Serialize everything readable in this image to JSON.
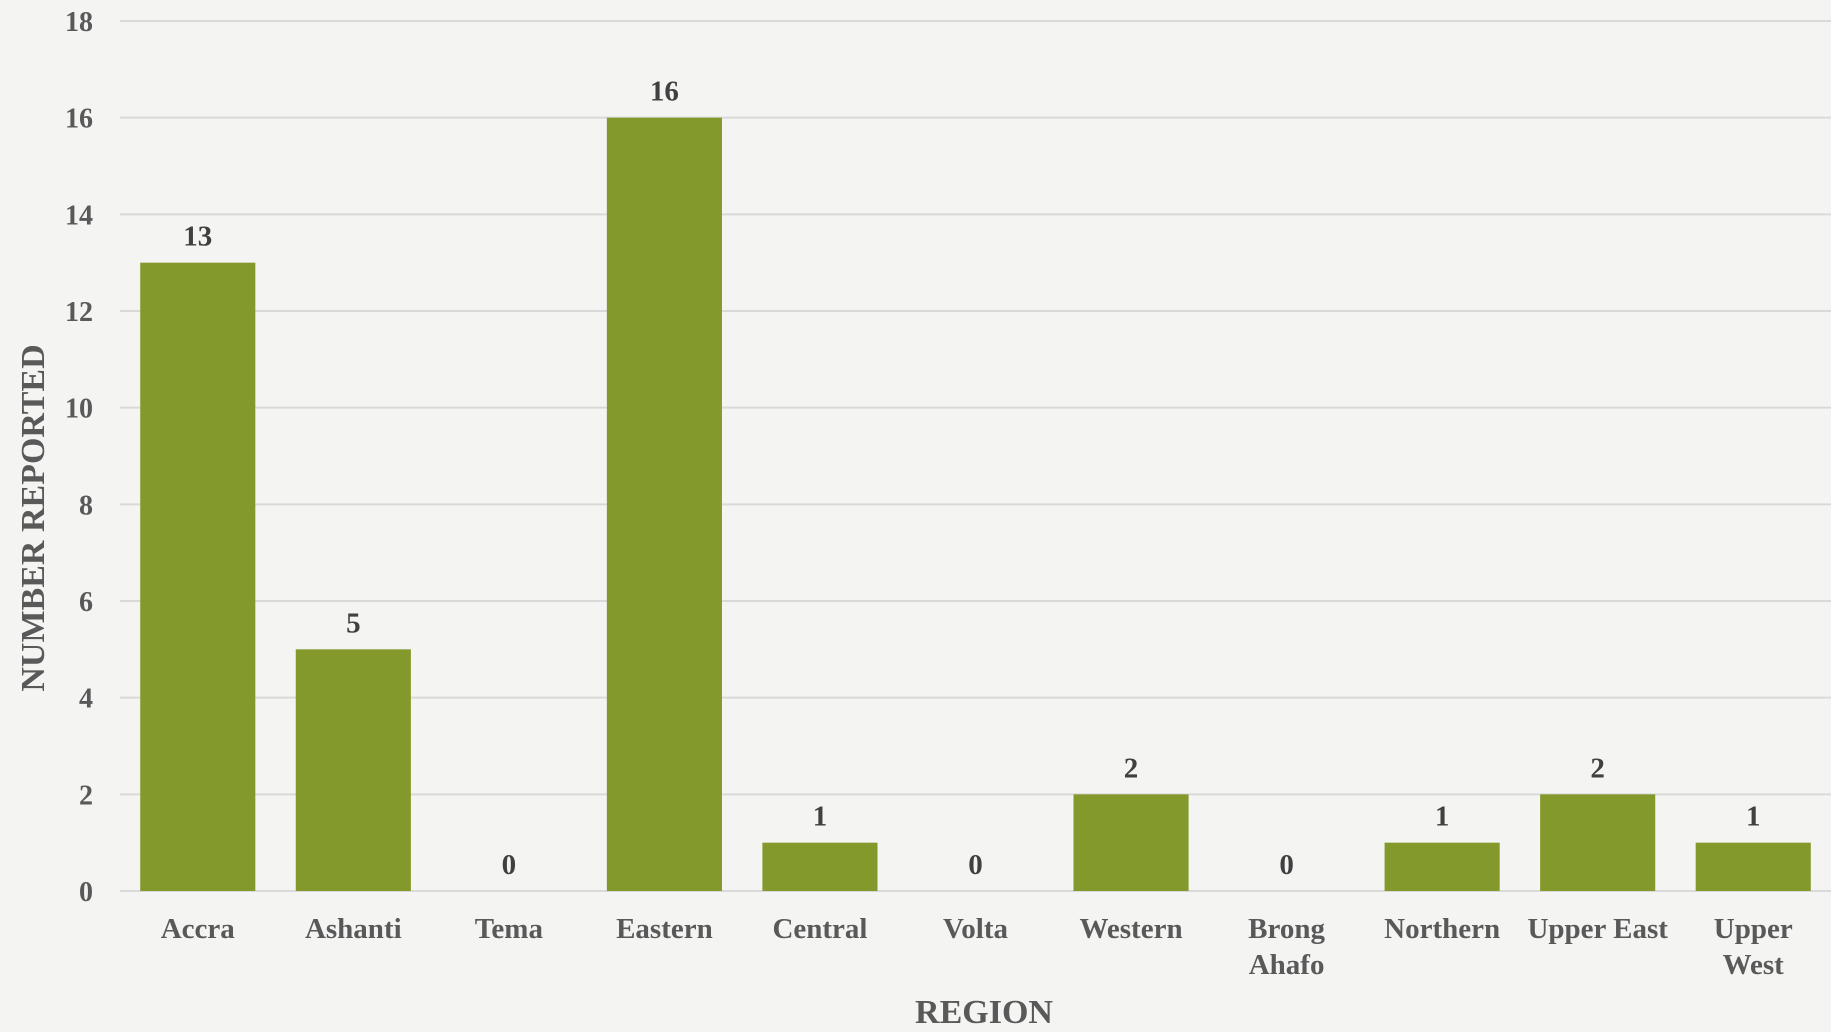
{
  "chart_data": {
    "type": "bar",
    "title": "",
    "xlabel": "REGION",
    "ylabel": "NUMBER REPORTED",
    "categories": [
      "Accra",
      "Ashanti",
      "Tema",
      "Eastern",
      "Central",
      "Volta",
      "Western",
      "Brong Ahafo",
      "Northern",
      "Upper East",
      "Upper West"
    ],
    "values": [
      13,
      5,
      0,
      16,
      1,
      0,
      2,
      0,
      1,
      2,
      1
    ],
    "ylim": [
      0,
      18
    ],
    "yticks": [
      0,
      2,
      4,
      6,
      8,
      10,
      12,
      14,
      16,
      18
    ],
    "grid": true,
    "legend": "none",
    "data_labels": true,
    "bar_color": "#84992b",
    "grid_color": "#d9d9d9",
    "text_color": "#595959"
  }
}
